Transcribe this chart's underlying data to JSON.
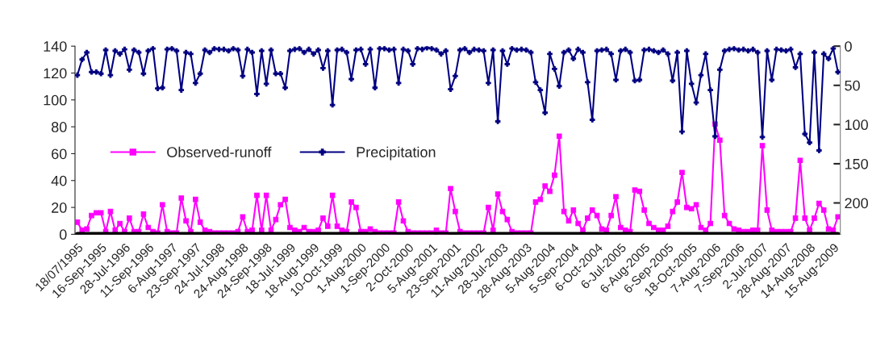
{
  "chart_data": {
    "type": "line",
    "categories": [
      "18/07/1995",
      null,
      null,
      null,
      null,
      "16-Sep-1995",
      null,
      null,
      null,
      null,
      "28-Jul-1996",
      null,
      null,
      null,
      null,
      "11-Sep-1996",
      null,
      null,
      null,
      null,
      "6-Aug-1997",
      null,
      null,
      null,
      null,
      "23-Sep-1997",
      null,
      null,
      null,
      null,
      "24-Jul-1998",
      null,
      null,
      null,
      null,
      "24-Aug-1998",
      null,
      null,
      null,
      null,
      "24-Sep-1998",
      null,
      null,
      null,
      null,
      "18-Jul-1999",
      null,
      null,
      null,
      null,
      "18-Aug-1999",
      null,
      null,
      null,
      null,
      "10-Oct-1999",
      null,
      null,
      null,
      null,
      "1-Aug-2000",
      null,
      null,
      null,
      null,
      "1-Sep-2000",
      null,
      null,
      null,
      null,
      "2-Oct-2000",
      null,
      null,
      null,
      null,
      "5-Aug-2001",
      null,
      null,
      null,
      null,
      "23-Sep-2001",
      null,
      null,
      null,
      null,
      "11-Aug-2002",
      null,
      null,
      null,
      null,
      "28-Jul-2003",
      null,
      null,
      null,
      null,
      "28-Aug-2003",
      null,
      null,
      null,
      null,
      "5-Aug-2004",
      null,
      null,
      null,
      null,
      "5-Sep-2004",
      null,
      null,
      null,
      null,
      "6-Oct-2004",
      null,
      null,
      null,
      null,
      "6-Jul-2005",
      null,
      null,
      null,
      null,
      "6-Aug-2005",
      null,
      null,
      null,
      null,
      "6-Sep-2005",
      null,
      null,
      null,
      null,
      "18-Oct-2005",
      null,
      null,
      null,
      null,
      "7-Aug-2006",
      null,
      null,
      null,
      null,
      "7-Sep-2006",
      null,
      null,
      null,
      null,
      "2-Jul-2007",
      null,
      null,
      null,
      null,
      "28-Aug-2007",
      null,
      null,
      null,
      null,
      "14-Aug-2008",
      null,
      null,
      null,
      null,
      "15-Aug-2009",
      null
    ],
    "series": [
      {
        "name": null,
        "color": "#000000",
        "marker": "none",
        "values": [
          0,
          0,
          0,
          0,
          0,
          0,
          0,
          0,
          0,
          0,
          0,
          0,
          0,
          0,
          0,
          0,
          0,
          0,
          0,
          0,
          0,
          0,
          0,
          0,
          0,
          0,
          0,
          0,
          0,
          0,
          0,
          0,
          0,
          0,
          0,
          0,
          0,
          0,
          0,
          0,
          0,
          0,
          0,
          0,
          0,
          0,
          0,
          0,
          0,
          0,
          0,
          0,
          0,
          0,
          0,
          0,
          0,
          0,
          0,
          0,
          0,
          0,
          0,
          0,
          0,
          0,
          0,
          0,
          0,
          0,
          0,
          0,
          0,
          0,
          0,
          0,
          0,
          0,
          0,
          0,
          0,
          0,
          0,
          0,
          0,
          0,
          0,
          0,
          0,
          0,
          0,
          0,
          0,
          0,
          0,
          0,
          0,
          0,
          0,
          0,
          0,
          0,
          0,
          0,
          0,
          0,
          0,
          0,
          0,
          0,
          0,
          0,
          0,
          0,
          0,
          0,
          0,
          0,
          0,
          0,
          0,
          0,
          0,
          0,
          0,
          0,
          0,
          0,
          0,
          0,
          0,
          0,
          0,
          0,
          0,
          0,
          0,
          0,
          0,
          0,
          0,
          0,
          0,
          0,
          0,
          0,
          0,
          0,
          0,
          0,
          0,
          0,
          0,
          0,
          0,
          0,
          0,
          0,
          0,
          0,
          0,
          0
        ]
      },
      {
        "name": "Observed-runoff",
        "color": "#ff00ff",
        "marker": "square",
        "values": [
          9,
          3,
          4,
          14,
          16,
          16,
          2,
          17,
          3,
          8,
          2,
          12,
          2,
          2,
          15,
          5,
          2,
          1,
          22,
          2,
          1,
          1,
          27,
          10,
          2,
          26,
          9,
          3,
          2,
          1,
          1,
          1,
          1,
          1,
          2,
          13,
          2,
          3,
          29,
          3,
          29,
          3,
          11,
          22,
          26,
          5,
          3,
          2,
          5,
          2,
          2,
          3,
          12,
          6,
          29,
          6,
          3,
          2,
          24,
          20,
          2,
          2,
          4,
          2,
          1,
          1,
          1,
          1,
          24,
          10,
          2,
          1,
          1,
          1,
          1,
          1,
          3,
          1,
          1,
          34,
          17,
          2,
          1,
          1,
          1,
          1,
          1,
          20,
          3,
          30,
          17,
          11,
          2,
          1,
          1,
          1,
          1,
          24,
          26,
          36,
          32,
          44,
          73,
          17,
          10,
          18,
          8,
          3,
          12,
          18,
          14,
          4,
          3,
          14,
          28,
          5,
          3,
          2,
          33,
          32,
          18,
          8,
          5,
          3,
          3,
          6,
          17,
          24,
          46,
          20,
          19,
          22,
          5,
          3,
          8,
          82,
          70,
          14,
          8,
          4,
          3,
          2,
          2,
          3,
          3,
          66,
          18,
          3,
          2,
          2,
          2,
          2,
          12,
          55,
          12,
          3,
          12,
          23,
          18,
          4,
          3,
          13
        ]
      },
      {
        "name": "Precipitation",
        "color": "#000080",
        "marker": "cross",
        "axis": "y2",
        "values": [
          37,
          17,
          8,
          33,
          33,
          35,
          5,
          37,
          6,
          10,
          4,
          30,
          5,
          8,
          35,
          6,
          3,
          54,
          53,
          4,
          3,
          6,
          56,
          8,
          10,
          47,
          35,
          5,
          8,
          3,
          4,
          4,
          6,
          3,
          5,
          38,
          4,
          8,
          61,
          6,
          48,
          5,
          35,
          35,
          53,
          6,
          4,
          3,
          8,
          4,
          10,
          5,
          28,
          6,
          75,
          5,
          4,
          8,
          42,
          5,
          4,
          23,
          4,
          53,
          3,
          3,
          5,
          4,
          47,
          4,
          6,
          23,
          3,
          4,
          2,
          3,
          5,
          10,
          6,
          55,
          38,
          5,
          3,
          8,
          4,
          5,
          6,
          47,
          5,
          96,
          6,
          23,
          3,
          5,
          4,
          5,
          8,
          46,
          56,
          85,
          10,
          29,
          51,
          8,
          5,
          16,
          4,
          8,
          46,
          94,
          6,
          5,
          4,
          10,
          43,
          6,
          4,
          8,
          44,
          43,
          5,
          4,
          6,
          8,
          5,
          10,
          44,
          8,
          109,
          6,
          48,
          72,
          37,
          10,
          56,
          115,
          30,
          6,
          4,
          3,
          5,
          4,
          6,
          4,
          8,
          116,
          6,
          43,
          4,
          5,
          6,
          4,
          27,
          10,
          112,
          123,
          8,
          133,
          10,
          16,
          3,
          33
        ]
      }
    ],
    "ylim": [
      0,
      140
    ],
    "yticks": [
      0,
      20,
      40,
      60,
      80,
      100,
      120,
      140
    ],
    "y2lim": [
      240,
      0
    ],
    "y2ticks": [
      0,
      50,
      100,
      150,
      200
    ],
    "grid": false,
    "legend": "left"
  }
}
